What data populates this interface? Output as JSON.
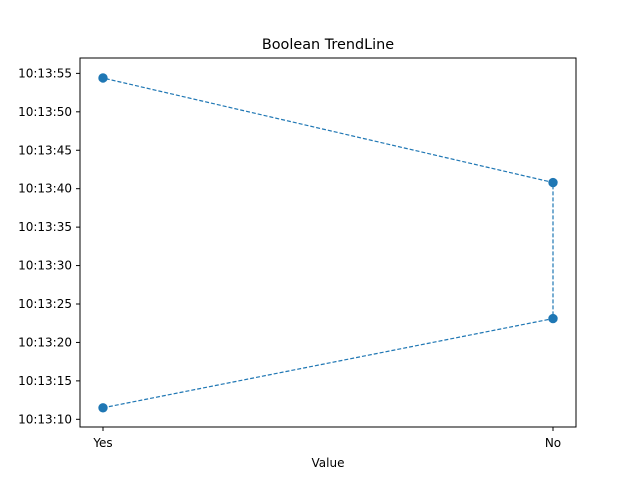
{
  "chart_data": {
    "type": "line",
    "title": "Boolean TrendLine",
    "xlabel": "Value",
    "ylabel": "",
    "categories": [
      "Yes",
      "No"
    ],
    "y_is_time": true,
    "ylim": [
      "10:13:09",
      "10:13:57"
    ],
    "y_ticks": [
      "10:13:10",
      "10:13:15",
      "10:13:20",
      "10:13:25",
      "10:13:30",
      "10:13:35",
      "10:13:40",
      "10:13:45",
      "10:13:50",
      "10:13:55"
    ],
    "series": [
      {
        "points": [
          {
            "x": "Yes",
            "y": "10:13:11.5"
          },
          {
            "x": "No",
            "y": "10:13:23.1"
          },
          {
            "x": "No",
            "y": "10:13:40.8"
          },
          {
            "x": "Yes",
            "y": "10:13:54.4"
          }
        ],
        "line_style": "dashed",
        "marker": "circle",
        "color": "#1f77b4"
      }
    ],
    "grid": false,
    "legend": "none"
  }
}
